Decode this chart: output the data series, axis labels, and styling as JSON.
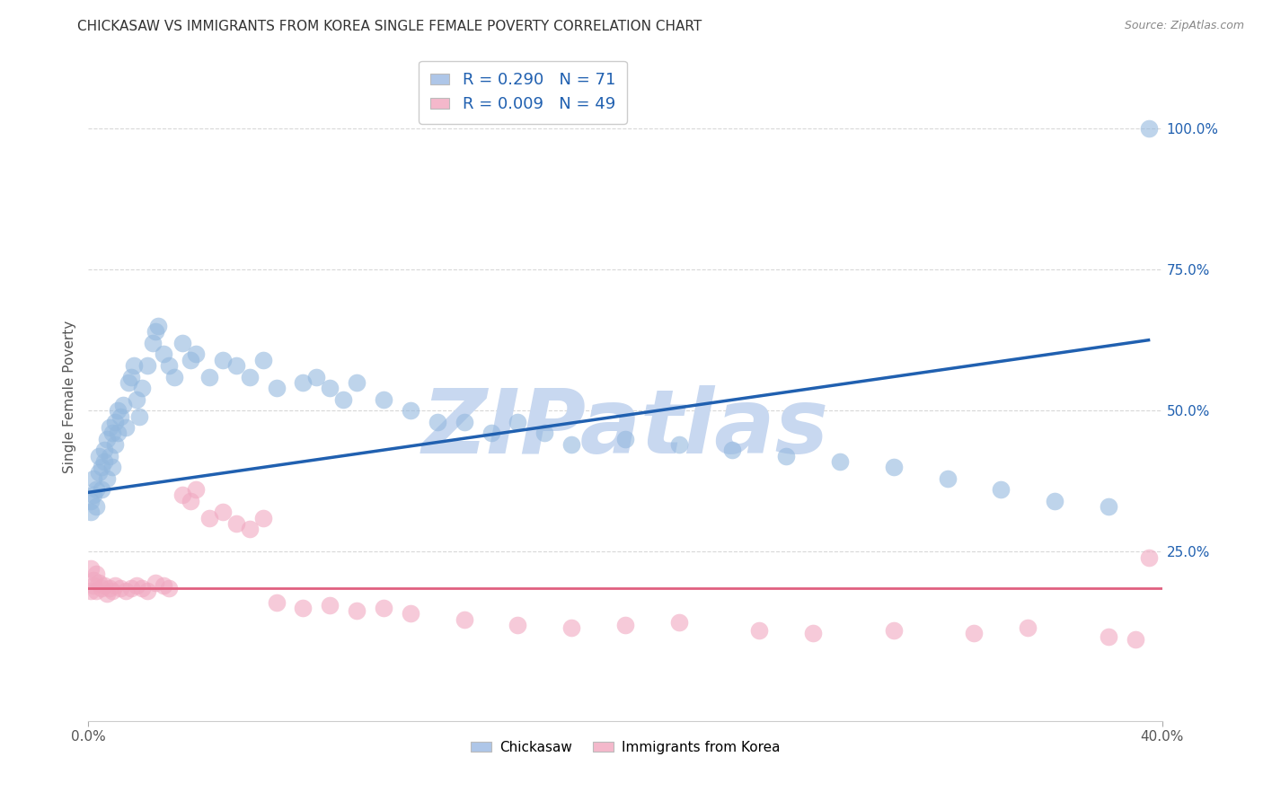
{
  "title": "CHICKASAW VS IMMIGRANTS FROM KOREA SINGLE FEMALE POVERTY CORRELATION CHART",
  "source": "Source: ZipAtlas.com",
  "ylabel": "Single Female Poverty",
  "legend_label1": "R = 0.290   N = 71",
  "legend_label2": "R = 0.009   N = 49",
  "legend_color1": "#aec6e8",
  "legend_color2": "#f4b8cb",
  "scatter_color1": "#93b8de",
  "scatter_color2": "#f0a8c0",
  "line_color1": "#2060b0",
  "line_color2": "#e06080",
  "watermark": "ZIPatlas",
  "watermark_color": "#c8d8f0",
  "background_color": "#ffffff",
  "grid_color": "#d8d8d8",
  "blue_x": [
    0.001,
    0.001,
    0.002,
    0.002,
    0.003,
    0.003,
    0.004,
    0.004,
    0.005,
    0.005,
    0.006,
    0.006,
    0.007,
    0.007,
    0.008,
    0.008,
    0.009,
    0.009,
    0.01,
    0.01,
    0.011,
    0.011,
    0.012,
    0.013,
    0.014,
    0.015,
    0.016,
    0.017,
    0.018,
    0.019,
    0.02,
    0.022,
    0.024,
    0.025,
    0.026,
    0.028,
    0.03,
    0.032,
    0.035,
    0.038,
    0.04,
    0.045,
    0.05,
    0.055,
    0.06,
    0.065,
    0.07,
    0.08,
    0.085,
    0.09,
    0.095,
    0.1,
    0.11,
    0.12,
    0.13,
    0.14,
    0.15,
    0.16,
    0.17,
    0.18,
    0.2,
    0.22,
    0.24,
    0.26,
    0.28,
    0.3,
    0.32,
    0.34,
    0.36,
    0.38,
    0.395
  ],
  "blue_y": [
    0.34,
    0.32,
    0.35,
    0.38,
    0.33,
    0.36,
    0.42,
    0.39,
    0.4,
    0.36,
    0.43,
    0.41,
    0.45,
    0.38,
    0.47,
    0.42,
    0.46,
    0.4,
    0.48,
    0.44,
    0.5,
    0.46,
    0.49,
    0.51,
    0.47,
    0.55,
    0.56,
    0.58,
    0.52,
    0.49,
    0.54,
    0.58,
    0.62,
    0.64,
    0.65,
    0.6,
    0.58,
    0.56,
    0.62,
    0.59,
    0.6,
    0.56,
    0.59,
    0.58,
    0.56,
    0.59,
    0.54,
    0.55,
    0.56,
    0.54,
    0.52,
    0.55,
    0.52,
    0.5,
    0.48,
    0.48,
    0.46,
    0.48,
    0.46,
    0.44,
    0.45,
    0.44,
    0.43,
    0.42,
    0.41,
    0.4,
    0.38,
    0.36,
    0.34,
    0.33,
    1.0
  ],
  "pink_x": [
    0.001,
    0.001,
    0.002,
    0.002,
    0.003,
    0.003,
    0.004,
    0.005,
    0.006,
    0.007,
    0.008,
    0.009,
    0.01,
    0.012,
    0.014,
    0.016,
    0.018,
    0.02,
    0.022,
    0.025,
    0.028,
    0.03,
    0.035,
    0.038,
    0.04,
    0.045,
    0.05,
    0.055,
    0.06,
    0.065,
    0.07,
    0.08,
    0.09,
    0.1,
    0.11,
    0.12,
    0.14,
    0.16,
    0.18,
    0.2,
    0.22,
    0.25,
    0.27,
    0.3,
    0.33,
    0.35,
    0.38,
    0.39,
    0.395
  ],
  "pink_y": [
    0.22,
    0.18,
    0.2,
    0.19,
    0.21,
    0.18,
    0.195,
    0.185,
    0.19,
    0.175,
    0.185,
    0.18,
    0.19,
    0.185,
    0.18,
    0.185,
    0.19,
    0.185,
    0.18,
    0.195,
    0.19,
    0.185,
    0.35,
    0.34,
    0.36,
    0.31,
    0.32,
    0.3,
    0.29,
    0.31,
    0.16,
    0.15,
    0.155,
    0.145,
    0.15,
    0.14,
    0.13,
    0.12,
    0.115,
    0.12,
    0.125,
    0.11,
    0.105,
    0.11,
    0.105,
    0.115,
    0.1,
    0.095,
    0.24
  ],
  "xlim": [
    0.0,
    0.4
  ],
  "ylim": [
    -0.05,
    1.1
  ],
  "right_yticks": [
    "100.0%",
    "75.0%",
    "50.0%",
    "25.0%"
  ],
  "right_ytick_vals": [
    1.0,
    0.75,
    0.5,
    0.25
  ],
  "blue_line_x0": 0.0,
  "blue_line_x1": 0.395,
  "blue_line_y0": 0.355,
  "blue_line_y1": 0.625,
  "pink_line_x0": 0.0,
  "pink_line_x1": 0.4,
  "pink_line_y0": 0.185,
  "pink_line_y1": 0.185
}
